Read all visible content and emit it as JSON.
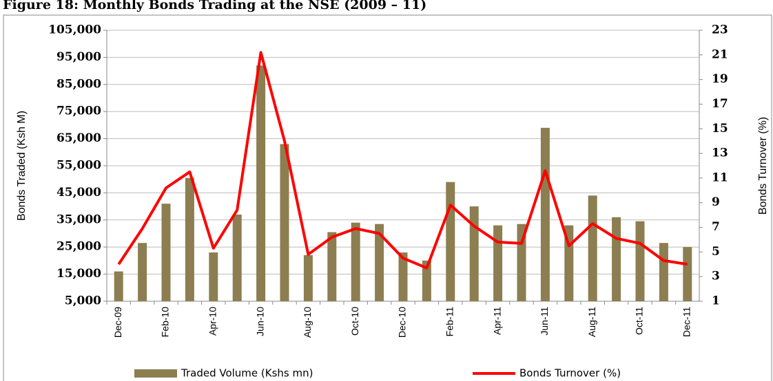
{
  "chart_data": {
    "type": "bar-line",
    "title": "Figure 18: Monthly Bonds Trading at the NSE (2009 – 11)",
    "y_label": "Bonds Traded (Ksh M)",
    "y2_label": "Bonds Turnover (%)",
    "categories": [
      "Dec-09",
      null,
      "Feb-10",
      null,
      "Apr-10",
      null,
      "Jun-10",
      null,
      "Aug-10",
      null,
      "Oct-10",
      null,
      "Dec-10",
      null,
      "Feb-11",
      null,
      "Apr-11",
      null,
      "Jun-11",
      null,
      "Aug-11",
      null,
      "Oct-11",
      null,
      "Dec-11"
    ],
    "series": [
      {
        "name": "Traded Volume (Kshs mn)",
        "type": "bar",
        "color": "#8c7e50",
        "values": [
          16000,
          26500,
          41000,
          50500,
          23000,
          37000,
          92000,
          63000,
          22000,
          30500,
          34000,
          33500,
          23000,
          20000,
          49000,
          40000,
          33000,
          33500,
          69000,
          33000,
          44000,
          36000,
          34500,
          26500,
          25000
        ]
      },
      {
        "name": "Bonds Turnover (%)",
        "type": "line",
        "axis": "y2",
        "color": "#ff0000",
        "values": [
          4.0,
          6.9,
          10.2,
          11.5,
          5.3,
          8.4,
          21.2,
          14.0,
          4.8,
          6.2,
          6.9,
          6.5,
          4.5,
          3.7,
          8.8,
          7.1,
          5.8,
          5.7,
          11.6,
          5.5,
          7.3,
          6.1,
          5.7,
          4.3,
          4.0
        ]
      }
    ],
    "ylim": [
      5000,
      105000
    ],
    "yticks": [
      {
        "value": 5000,
        "label": "5,000"
      },
      {
        "value": 15000,
        "label": "15,000"
      },
      {
        "value": 25000,
        "label": "25,000"
      },
      {
        "value": 35000,
        "label": "35,000"
      },
      {
        "value": 45000,
        "label": "45,000"
      },
      {
        "value": 55000,
        "label": "55,000"
      },
      {
        "value": 65000,
        "label": "65,000"
      },
      {
        "value": 75000,
        "label": "75,000"
      },
      {
        "value": 85000,
        "label": "85,000"
      },
      {
        "value": 95000,
        "label": "95,000"
      },
      {
        "value": 105000,
        "label": "105,000"
      }
    ],
    "y2lim": [
      1,
      23
    ],
    "y2ticks": [
      1,
      3,
      5,
      7,
      9,
      11,
      13,
      15,
      17,
      19,
      21,
      23
    ],
    "grid": true,
    "legend": "bottom"
  }
}
